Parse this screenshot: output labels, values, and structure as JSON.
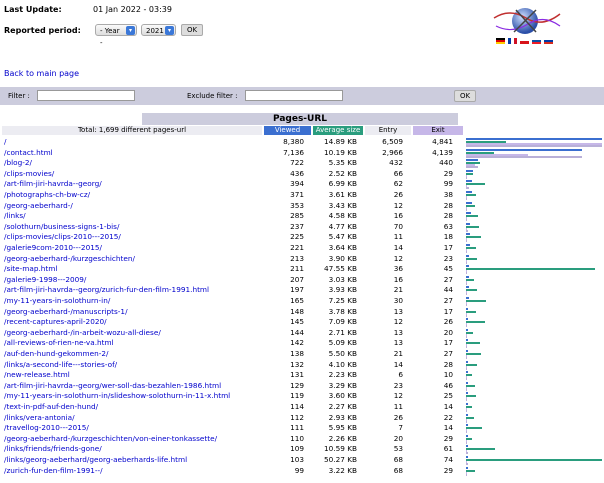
{
  "header": {
    "last_update_label": "Last Update:",
    "last_update_value": "01 Jan 2022 - 03:39",
    "reported_period_label": "Reported period:",
    "year_select": "- Year -",
    "year_value": "2021",
    "ok_label": "OK"
  },
  "nav": {
    "back_link": "Back to main page"
  },
  "filter": {
    "filter_label": "Filter :",
    "exclude_label": "Exclude filter :",
    "ok_label": "OK"
  },
  "table": {
    "title": "Pages-URL",
    "total_label": "Total: 1,699 different pages-url",
    "col_viewed": "Viewed",
    "col_avg": "Average size",
    "col_entry": "Entry",
    "col_exit": "Exit",
    "rows": [
      {
        "url": "/",
        "viewed": "8,380",
        "avg": "14.89 KB",
        "entry": "6,509",
        "exit": "4,841"
      },
      {
        "url": "/contact.html",
        "viewed": "7,136",
        "avg": "10.19 KB",
        "entry": "2,966",
        "exit": "4,139"
      },
      {
        "url": "/blog-2/",
        "viewed": "722",
        "avg": "5.35 KB",
        "entry": "432",
        "exit": "440"
      },
      {
        "url": "/clips-movies/",
        "viewed": "436",
        "avg": "2.52 KB",
        "entry": "66",
        "exit": "29"
      },
      {
        "url": "/art-film-jiri-havrda--georg/",
        "viewed": "394",
        "avg": "6.99 KB",
        "entry": "62",
        "exit": "99"
      },
      {
        "url": "/photographs-ch-bw-cz/",
        "viewed": "371",
        "avg": "3.61 KB",
        "entry": "26",
        "exit": "38"
      },
      {
        "url": "/georg-aeberhard-/",
        "viewed": "353",
        "avg": "3.43 KB",
        "entry": "12",
        "exit": "28"
      },
      {
        "url": "/links/",
        "viewed": "285",
        "avg": "4.58 KB",
        "entry": "16",
        "exit": "28"
      },
      {
        "url": "/solothurn/business-signs-1-bis/",
        "viewed": "237",
        "avg": "4.77 KB",
        "entry": "70",
        "exit": "63"
      },
      {
        "url": "/clips-movies/clips-2010---2015/",
        "viewed": "225",
        "avg": "5.47 KB",
        "entry": "11",
        "exit": "18"
      },
      {
        "url": "/galerie9com-2010---2015/",
        "viewed": "221",
        "avg": "3.64 KB",
        "entry": "14",
        "exit": "17"
      },
      {
        "url": "/georg-aeberhard-/kurzgeschichten/",
        "viewed": "213",
        "avg": "3.90 KB",
        "entry": "12",
        "exit": "23"
      },
      {
        "url": "/site-map.html",
        "viewed": "211",
        "avg": "47.55 KB",
        "entry": "36",
        "exit": "45"
      },
      {
        "url": "/galerie9-1998---2009/",
        "viewed": "207",
        "avg": "3.03 KB",
        "entry": "16",
        "exit": "27"
      },
      {
        "url": "/art-film-jiri-havrda--georg/zurich-fur-den-film-1991.html",
        "viewed": "197",
        "avg": "3.93 KB",
        "entry": "21",
        "exit": "44"
      },
      {
        "url": "/my-11-years-in-solothurn-in/",
        "viewed": "165",
        "avg": "7.25 KB",
        "entry": "30",
        "exit": "27"
      },
      {
        "url": "/georg-aeberhard-/manuscripts-1/",
        "viewed": "148",
        "avg": "3.78 KB",
        "entry": "13",
        "exit": "17"
      },
      {
        "url": "/recent-captures-april-2020/",
        "viewed": "145",
        "avg": "7.09 KB",
        "entry": "12",
        "exit": "26"
      },
      {
        "url": "/georg-aeberhard-/in-arbeit-wozu-all-diese/",
        "viewed": "144",
        "avg": "2.71 KB",
        "entry": "13",
        "exit": "20"
      },
      {
        "url": "/all-reviews-of-rien-ne-va.html",
        "viewed": "142",
        "avg": "5.09 KB",
        "entry": "13",
        "exit": "17"
      },
      {
        "url": "/auf-den-hund-gekommen-2/",
        "viewed": "138",
        "avg": "5.50 KB",
        "entry": "21",
        "exit": "27"
      },
      {
        "url": "/links/a-second-life---stories-of/",
        "viewed": "132",
        "avg": "4.10 KB",
        "entry": "14",
        "exit": "28"
      },
      {
        "url": "/new-release.html",
        "viewed": "131",
        "avg": "2.23 KB",
        "entry": "6",
        "exit": "10"
      },
      {
        "url": "/art-film-jiri-havrda--georg/wer-soll-das-bezahlen-1986.html",
        "viewed": "129",
        "avg": "3.29 KB",
        "entry": "23",
        "exit": "46"
      },
      {
        "url": "/my-11-years-in-solothurn-in/slideshow-solothurn-in-11-x.html",
        "viewed": "119",
        "avg": "3.60 KB",
        "entry": "12",
        "exit": "25"
      },
      {
        "url": "/text-in-pdf-auf-den-hund/",
        "viewed": "114",
        "avg": "2.27 KB",
        "entry": "11",
        "exit": "14"
      },
      {
        "url": "/links/vera-antonia/",
        "viewed": "112",
        "avg": "2.93 KB",
        "entry": "26",
        "exit": "22"
      },
      {
        "url": "/travellog-2010---2015/",
        "viewed": "111",
        "avg": "5.95 KB",
        "entry": "7",
        "exit": "14"
      },
      {
        "url": "/georg-aeberhard-/kurzgeschichten/von-einer-tonkassette/",
        "viewed": "110",
        "avg": "2.26 KB",
        "entry": "20",
        "exit": "29"
      },
      {
        "url": "/links/friends/friends-gone/",
        "viewed": "109",
        "avg": "10.59 KB",
        "entry": "53",
        "exit": "61"
      },
      {
        "url": "/links/georg-aeberhard/georg-aeberhards-life.html",
        "viewed": "103",
        "avg": "50.27 KB",
        "entry": "68",
        "exit": "74"
      },
      {
        "url": "/zurich-fur-den-film-1991--/",
        "viewed": "99",
        "avg": "3.22 KB",
        "entry": "68",
        "exit": "29"
      }
    ]
  },
  "colors": {
    "viewed": "#3b6fd0",
    "avg": "#2a9d7e",
    "entry": "#c6b7e8",
    "exit": "#b9b0d8"
  }
}
